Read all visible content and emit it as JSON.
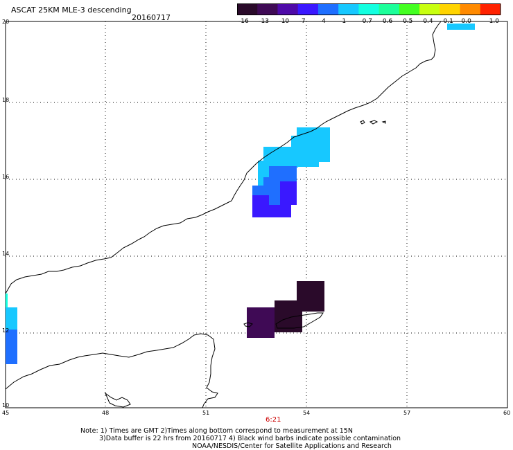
{
  "header": {
    "title": "ASCAT 25KM MLE-3 descending",
    "date": "20160717"
  },
  "colorbar": {
    "labels": [
      "-16",
      "-13",
      "-10",
      "-7",
      "-4",
      "-1",
      "-0.7",
      "-0.6",
      "-0.5",
      "-0.4",
      "-0.1",
      "0.0",
      "1.0"
    ],
    "colors": [
      "#2a0a2a",
      "#3f0a55",
      "#4e0aa8",
      "#3a18ff",
      "#1f6fff",
      "#17c8ff",
      "#13ffe0",
      "#1cff9a",
      "#44ff22",
      "#c8ff10",
      "#ffd400",
      "#ff8a00",
      "#ff2200"
    ]
  },
  "axes": {
    "x_ticks": [
      "45",
      "48",
      "51",
      "54",
      "57",
      "60"
    ],
    "y_ticks": [
      "20",
      "18",
      "16",
      "14",
      "12",
      "10"
    ],
    "grid": "dotted"
  },
  "time_label": "6:21",
  "notes": {
    "line1": "Note: 1) Times are GMT 2)Times along bottom correspond to measurement at 15N",
    "line2": "3)Data buffer is 22 hrs from 20160717 4) Black wind barbs indicate possible contamination",
    "line3": "NOAA/NESDIS/Center for Satellite Applications and Research"
  }
}
